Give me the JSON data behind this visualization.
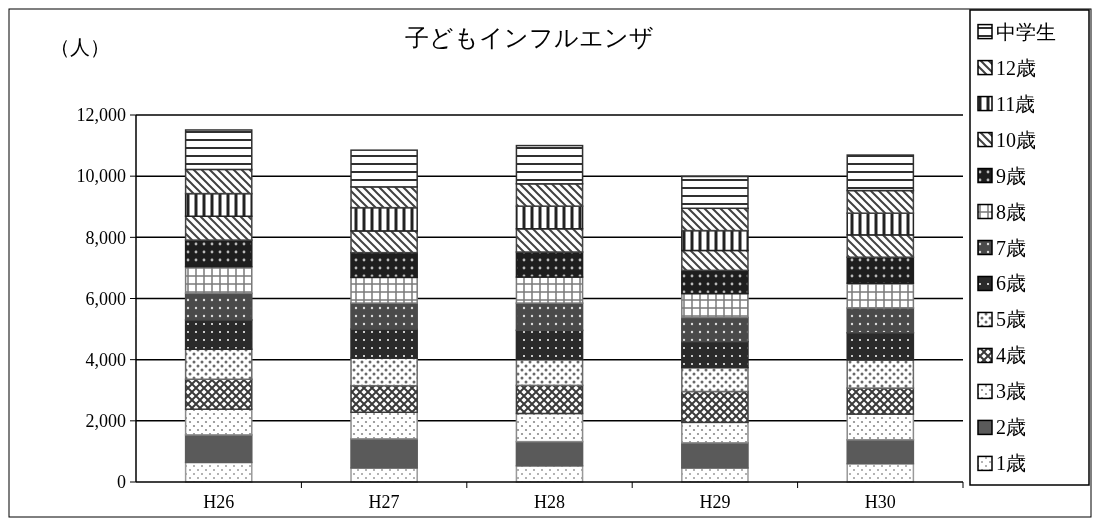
{
  "chart_data": {
    "type": "bar",
    "stacked": true,
    "title": "子どもインフルエンザ",
    "ylabel": "（人）",
    "categories": [
      "H26",
      "H27",
      "H28",
      "H29",
      "H30"
    ],
    "ylim": [
      0,
      12000
    ],
    "yticks": [
      {
        "value": 0,
        "label": "0"
      },
      {
        "value": 2000,
        "label": "2,000"
      },
      {
        "value": 4000,
        "label": "4,000"
      },
      {
        "value": 6000,
        "label": "6,000"
      },
      {
        "value": 8000,
        "label": "8,000"
      },
      {
        "value": 10000,
        "label": "10,000"
      },
      {
        "value": 12000,
        "label": "12,000"
      }
    ],
    "grid": "y",
    "legend": "right",
    "series": [
      {
        "name": "1歳",
        "color": "#9a9a9a",
        "values": [
          640,
          460,
          530,
          460,
          600
        ]
      },
      {
        "name": "2歳",
        "color": "#5a5a5a",
        "values": [
          900,
          950,
          790,
          820,
          780
        ]
      },
      {
        "name": "3歳",
        "color": "#8a8a8a",
        "values": [
          840,
          870,
          920,
          670,
          840
        ]
      },
      {
        "name": "4歳",
        "color": "#3a3a3a",
        "values": [
          980,
          870,
          920,
          1010,
          850
        ]
      },
      {
        "name": "5歳",
        "color": "#6a6a6a",
        "values": [
          980,
          900,
          840,
          780,
          920
        ]
      },
      {
        "name": "6歳",
        "color": "#2a2a2a",
        "values": [
          960,
          950,
          960,
          850,
          890
        ]
      },
      {
        "name": "7歳",
        "color": "#4a4a4a",
        "values": [
          870,
          850,
          890,
          790,
          810
        ]
      },
      {
        "name": "8歳",
        "color": "#7a7a7a",
        "values": [
          870,
          840,
          850,
          780,
          810
        ]
      },
      {
        "name": "9歳",
        "color": "#1e1e1e",
        "values": [
          870,
          810,
          820,
          760,
          850
        ]
      },
      {
        "name": "10歳",
        "color": "#444444",
        "values": [
          780,
          710,
          760,
          650,
          730
        ]
      },
      {
        "name": "11歳",
        "color": "#222222",
        "values": [
          740,
          760,
          740,
          650,
          710
        ]
      },
      {
        "name": "12歳",
        "color": "#404040",
        "values": [
          790,
          680,
          730,
          730,
          740
        ]
      },
      {
        "name": "中学生",
        "color": "#303030",
        "values": [
          1290,
          1200,
          1250,
          1040,
          1160
        ]
      }
    ]
  }
}
